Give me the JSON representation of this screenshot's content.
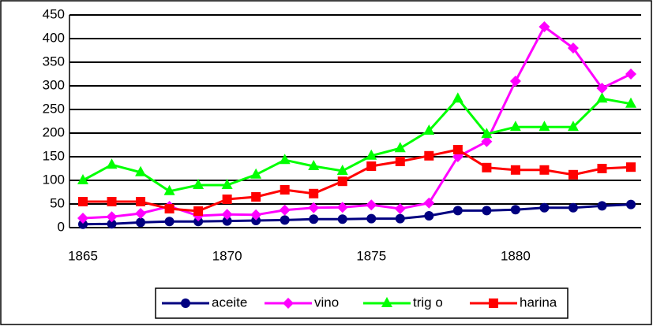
{
  "chart_data": {
    "type": "line",
    "categories": [
      "1865",
      null,
      null,
      null,
      null,
      "1870",
      null,
      null,
      null,
      null,
      "1875",
      null,
      null,
      null,
      null,
      "1880",
      null,
      null,
      null,
      null
    ],
    "series": [
      {
        "name": "aceite",
        "color": "#000080",
        "marker": "circle",
        "values": [
          7,
          8,
          11,
          13,
          13,
          14,
          15,
          16,
          18,
          18,
          19,
          19,
          25,
          36,
          36,
          38,
          42,
          42,
          46,
          49
        ]
      },
      {
        "name": "vino",
        "color": "#ff00ff",
        "marker": "diamond",
        "values": [
          20,
          23,
          30,
          45,
          25,
          28,
          27,
          37,
          42,
          43,
          48,
          40,
          52,
          150,
          182,
          310,
          425,
          380,
          295,
          325
        ]
      },
      {
        "name": "trig o",
        "color": "#00ff00",
        "marker": "triangle",
        "values": [
          100,
          133,
          117,
          77,
          90,
          90,
          112,
          143,
          130,
          120,
          152,
          168,
          205,
          273,
          198,
          213,
          213,
          213,
          273,
          262
        ]
      },
      {
        "name": "harina",
        "color": "#ff0000",
        "marker": "square",
        "values": [
          55,
          55,
          55,
          40,
          35,
          60,
          65,
          80,
          72,
          98,
          130,
          140,
          152,
          165,
          127,
          122,
          122,
          112,
          125,
          128
        ]
      }
    ],
    "ylim": [
      0,
      450
    ],
    "yticks": [
      0,
      50,
      100,
      150,
      200,
      250,
      300,
      350,
      400,
      450
    ],
    "grid": true,
    "legend": "bottom"
  }
}
